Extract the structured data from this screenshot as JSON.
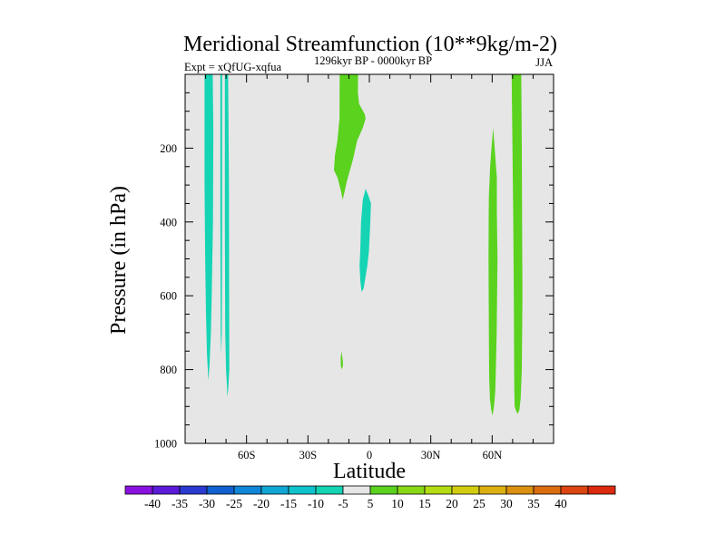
{
  "chart_data": {
    "type": "heatmap",
    "title": "Meridional Streamfunction (10**9kg/m-2)",
    "subtitle_left": "Expt = xQfUG-xqfua",
    "subtitle_center": "1296kyr BP - 0000kyr BP",
    "subtitle_right": "JJA",
    "xlabel": "Latitude",
    "ylabel": "Pressure (in hPa)",
    "xlim": [
      -90,
      90
    ],
    "ylim": [
      1000,
      0
    ],
    "x_ticks": [
      {
        "value": -60,
        "label": "60S"
      },
      {
        "value": -30,
        "label": "30S"
      },
      {
        "value": 0,
        "label": "0"
      },
      {
        "value": 30,
        "label": "30N"
      },
      {
        "value": 60,
        "label": "60N"
      }
    ],
    "y_ticks": [
      {
        "value": 200,
        "label": "200"
      },
      {
        "value": 400,
        "label": "400"
      },
      {
        "value": 600,
        "label": "600"
      },
      {
        "value": 800,
        "label": "800"
      },
      {
        "value": 1000,
        "label": "1000"
      }
    ],
    "background_color": "#e6e6e6",
    "colorbar": {
      "colors": [
        "#8a12e0",
        "#5a1ad8",
        "#2a3ad0",
        "#1060d0",
        "#0f86d8",
        "#10a6d6",
        "#10c2cc",
        "#14d4b4",
        "#e6e6e6",
        "#5ad21e",
        "#88d816",
        "#b4dc12",
        "#d2cc10",
        "#dcb010",
        "#dc9010",
        "#dc6c10",
        "#dc4410",
        "#dc2a10"
      ],
      "labels": [
        "-40",
        "-35",
        "-30",
        "-25",
        "-20",
        "-15",
        "-10",
        "-5",
        "5",
        "10",
        "15",
        "20",
        "25",
        "30",
        "35",
        "40"
      ]
    },
    "regions": [
      {
        "name": "cyan-band-80S",
        "color": "#14d4b4",
        "points": [
          [
            -80.5,
            0
          ],
          [
            -76.5,
            0
          ],
          [
            -76.2,
            150
          ],
          [
            -76.4,
            400
          ],
          [
            -77,
            600
          ],
          [
            -77.4,
            700
          ],
          [
            -77.8,
            750
          ],
          [
            -78,
            780
          ],
          [
            -78.4,
            810
          ],
          [
            -78.7,
            830
          ],
          [
            -78.9,
            800
          ],
          [
            -79.3,
            760
          ],
          [
            -79.8,
            650
          ],
          [
            -80.2,
            500
          ],
          [
            -80.5,
            300
          ]
        ]
      },
      {
        "name": "cyan-line-73S",
        "color": "#14d4b4",
        "points": [
          [
            -72.8,
            0
          ],
          [
            -71.9,
            0
          ],
          [
            -71.9,
            400
          ],
          [
            -72.1,
            700
          ],
          [
            -72.3,
            760
          ],
          [
            -72.6,
            700
          ],
          [
            -72.8,
            400
          ]
        ]
      },
      {
        "name": "cyan-band-70S",
        "color": "#14d4b4",
        "points": [
          [
            -70.6,
            0
          ],
          [
            -69,
            0
          ],
          [
            -68.6,
            300
          ],
          [
            -68.5,
            600
          ],
          [
            -68.4,
            800
          ],
          [
            -68.8,
            840
          ],
          [
            -69.2,
            870
          ],
          [
            -69.4,
            870
          ],
          [
            -69.6,
            840
          ],
          [
            -70,
            800
          ],
          [
            -70.4,
            700
          ],
          [
            -70.6,
            400
          ]
        ]
      },
      {
        "name": "green-patch-upper",
        "color": "#5ad21e",
        "points": [
          [
            -14.5,
            0
          ],
          [
            -5.5,
            0
          ],
          [
            -5.6,
            50
          ],
          [
            -5,
            80
          ],
          [
            -2.2,
            108
          ],
          [
            -1.8,
            120
          ],
          [
            -3.2,
            145
          ],
          [
            -6,
            180
          ],
          [
            -8,
            230
          ],
          [
            -11,
            290
          ],
          [
            -12.2,
            320
          ],
          [
            -13.1,
            340
          ],
          [
            -13.7,
            320
          ],
          [
            -15.5,
            280
          ],
          [
            -17.3,
            260
          ],
          [
            -16.8,
            220
          ],
          [
            -15.6,
            180
          ],
          [
            -14.6,
            120
          ]
        ]
      },
      {
        "name": "cyan-patch-equator",
        "color": "#14d4b4",
        "points": [
          [
            -1.8,
            310
          ],
          [
            -0.4,
            330
          ],
          [
            0.8,
            350
          ],
          [
            0.3,
            420
          ],
          [
            -0.2,
            480
          ],
          [
            -1,
            520
          ],
          [
            -1.9,
            550
          ],
          [
            -2.8,
            580
          ],
          [
            -3.8,
            590
          ],
          [
            -4.4,
            560
          ],
          [
            -4.8,
            520
          ],
          [
            -4.4,
            470
          ],
          [
            -4.1,
            400
          ],
          [
            -3.2,
            340
          ]
        ]
      },
      {
        "name": "green-speck",
        "color": "#5ad21e",
        "points": [
          [
            -13.6,
            750
          ],
          [
            -13,
            775
          ],
          [
            -12.9,
            790
          ],
          [
            -13.5,
            800
          ],
          [
            -13.9,
            790
          ],
          [
            -14,
            770
          ]
        ]
      },
      {
        "name": "green-band-60N",
        "color": "#5ad21e",
        "points": [
          [
            60.5,
            145
          ],
          [
            61.5,
            220
          ],
          [
            62.3,
            280
          ],
          [
            62.3,
            380
          ],
          [
            62.6,
            500
          ],
          [
            62.2,
            700
          ],
          [
            61.8,
            800
          ],
          [
            61.5,
            860
          ],
          [
            61,
            895
          ],
          [
            60.2,
            925
          ],
          [
            59.6,
            910
          ],
          [
            58.9,
            880
          ],
          [
            58.5,
            820
          ],
          [
            58.4,
            700
          ],
          [
            58.2,
            500
          ],
          [
            58.3,
            380
          ],
          [
            58.4,
            330
          ],
          [
            59,
            250
          ],
          [
            59.8,
            190
          ]
        ]
      },
      {
        "name": "green-band-72N",
        "color": "#5ad21e",
        "points": [
          [
            69.5,
            0
          ],
          [
            74.2,
            0
          ],
          [
            74.5,
            200
          ],
          [
            74.6,
            400
          ],
          [
            74.8,
            600
          ],
          [
            74.5,
            800
          ],
          [
            73.9,
            880
          ],
          [
            73.3,
            910
          ],
          [
            72.5,
            920
          ],
          [
            71.7,
            912
          ],
          [
            71,
            900
          ],
          [
            70.8,
            850
          ],
          [
            70.6,
            600
          ],
          [
            70.3,
            400
          ],
          [
            69.9,
            200
          ]
        ]
      }
    ]
  }
}
